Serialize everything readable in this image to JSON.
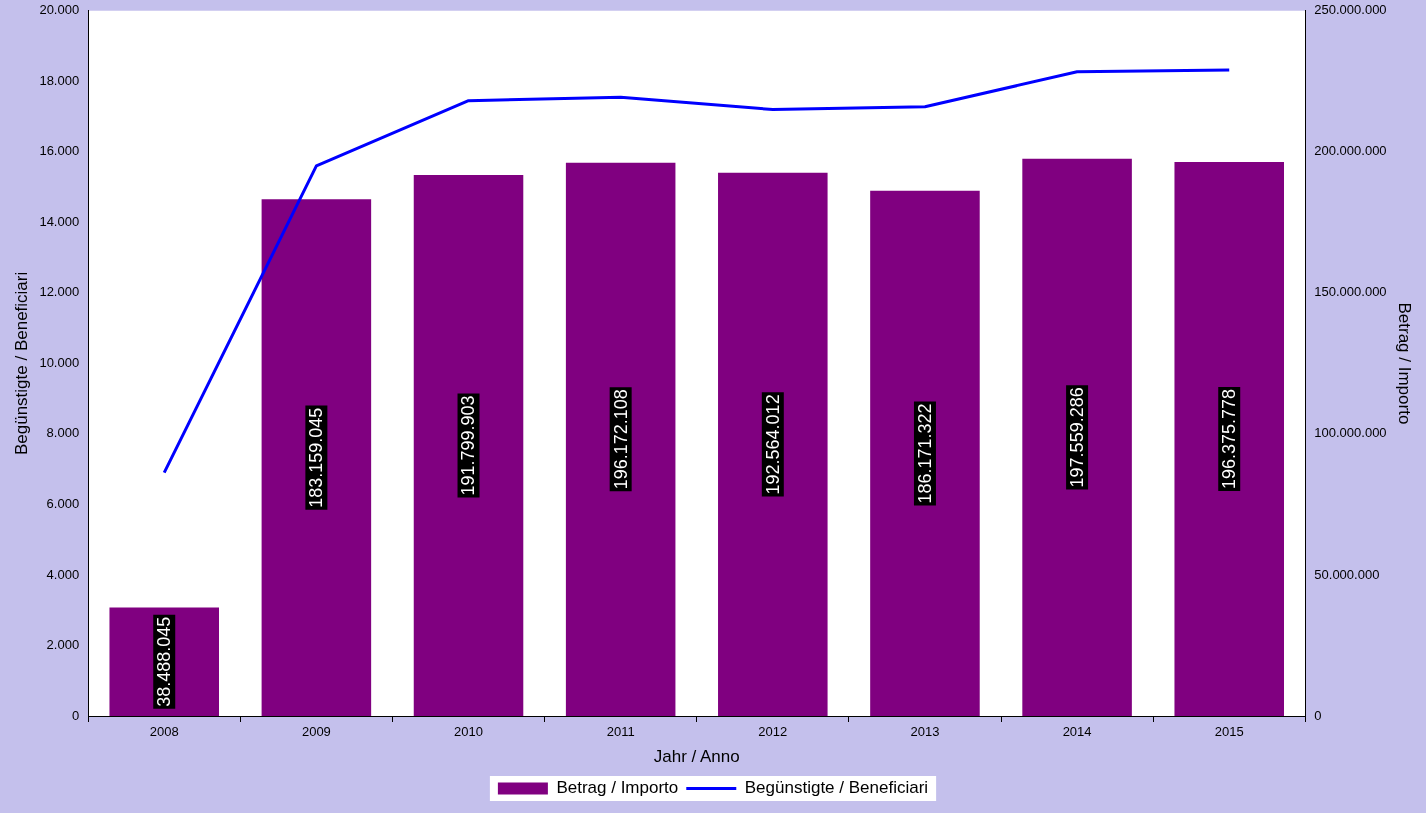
{
  "chart_data": {
    "type": "bar",
    "xlabel": "Jahr / Anno",
    "ylabel": "Begünstigte / Beneficiari",
    "y2label": "Betrag / Importo",
    "categories": [
      "2008",
      "2009",
      "2010",
      "2011",
      "2012",
      "2013",
      "2014",
      "2015"
    ],
    "series": [
      {
        "name": "Betrag / Importo",
        "axis": "y2",
        "color": "#800080",
        "values": [
          38488045,
          183159045,
          191799903,
          196172108,
          192564012,
          186171322,
          197559286,
          196375778
        ],
        "value_labels": [
          "38.488.045",
          "183.159.045",
          "191.799.903",
          "196.172.108",
          "192.564.012",
          "186.171.322",
          "197.559.286",
          "196.375.778"
        ]
      },
      {
        "name": "Begünstigte / Beneficiari",
        "type": "line",
        "axis": "y",
        "color": "#0000ff",
        "values": [
          6900,
          15600,
          17450,
          17550,
          17200,
          17280,
          18270,
          18320
        ]
      }
    ],
    "ylim": [
      0,
      20000
    ],
    "yticks": [
      {
        "value": 0,
        "label": "0"
      },
      {
        "value": 2000,
        "label": "2.000"
      },
      {
        "value": 4000,
        "label": "4.000"
      },
      {
        "value": 6000,
        "label": "6.000"
      },
      {
        "value": 8000,
        "label": "8.000"
      },
      {
        "value": 10000,
        "label": "10.000"
      },
      {
        "value": 12000,
        "label": "12.000"
      },
      {
        "value": 14000,
        "label": "14.000"
      },
      {
        "value": 16000,
        "label": "16.000"
      },
      {
        "value": 18000,
        "label": "18.000"
      },
      {
        "value": 20000,
        "label": "20.000"
      }
    ],
    "y2lim": [
      0,
      250000000
    ],
    "y2ticks": [
      {
        "value": 0,
        "label": "0"
      },
      {
        "value": 50000000,
        "label": "50.000.000"
      },
      {
        "value": 100000000,
        "label": "100.000.000"
      },
      {
        "value": 150000000,
        "label": "150.000.000"
      },
      {
        "value": 200000000,
        "label": "200.000.000"
      },
      {
        "value": 250000000,
        "label": "250.000.000"
      }
    ],
    "grid": false,
    "legend": "bottom",
    "marker": "none",
    "line_style": "solid"
  }
}
